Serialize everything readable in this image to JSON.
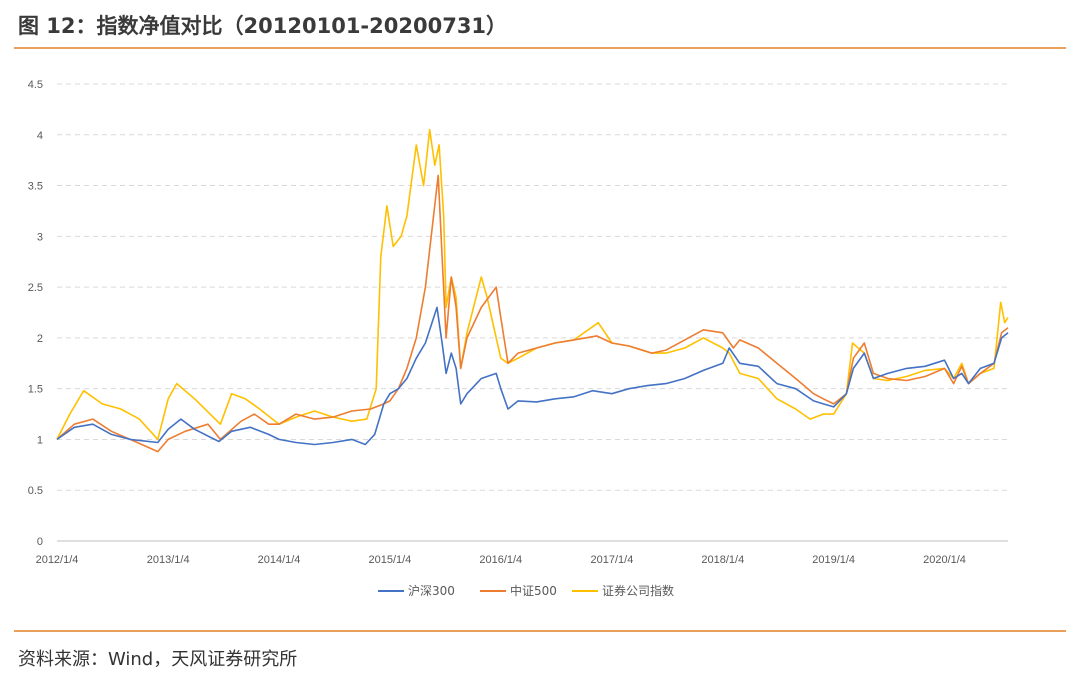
{
  "title": "图 12：指数净值对比（20120101-20200731）",
  "source": "资料来源：Wind，天风证券研究所",
  "colors": {
    "hs300": "#4472c4",
    "zz500": "#ed7d31",
    "sec": "#ffc000",
    "accent": "#e8a05a"
  },
  "chart_data": {
    "type": "line",
    "title": "",
    "xlabel": "",
    "ylabel": "",
    "ylim": [
      0,
      4.5
    ],
    "yticks": [
      "0",
      "0.5",
      "1",
      "1.5",
      "2",
      "2.5",
      "3",
      "3.5",
      "4",
      "4.5"
    ],
    "xlim": [
      "2012-01-04",
      "2020-07-31"
    ],
    "xticks": [
      "2012/1/4",
      "2013/1/4",
      "2014/1/4",
      "2015/1/4",
      "2016/1/4",
      "2017/1/4",
      "2018/1/4",
      "2019/1/4",
      "2020/1/4"
    ],
    "grid": "horizontal-dashed",
    "legend_position": "bottom",
    "series": [
      {
        "name": "沪深300",
        "x": [
          "2012-01-04",
          "2012-03-01",
          "2012-05-01",
          "2012-07-01",
          "2012-09-01",
          "2012-12-01",
          "2013-01-04",
          "2013-02-15",
          "2013-04-01",
          "2013-06-20",
          "2013-08-01",
          "2013-10-01",
          "2013-12-01",
          "2014-01-04",
          "2014-03-01",
          "2014-05-01",
          "2014-07-01",
          "2014-09-01",
          "2014-10-15",
          "2014-11-15",
          "2014-12-15",
          "2015-01-04",
          "2015-02-01",
          "2015-03-01",
          "2015-04-01",
          "2015-05-01",
          "2015-06-08",
          "2015-06-25",
          "2015-07-08",
          "2015-07-25",
          "2015-08-10",
          "2015-08-25",
          "2015-09-15",
          "2015-11-01",
          "2015-12-20",
          "2016-01-04",
          "2016-01-28",
          "2016-03-01",
          "2016-05-01",
          "2016-07-01",
          "2016-09-01",
          "2016-11-01",
          "2017-01-04",
          "2017-03-01",
          "2017-05-01",
          "2017-07-01",
          "2017-09-01",
          "2017-11-01",
          "2018-01-04",
          "2018-01-25",
          "2018-03-01",
          "2018-05-01",
          "2018-07-01",
          "2018-09-01",
          "2018-10-30",
          "2018-12-01",
          "2019-01-04",
          "2019-02-15",
          "2019-03-10",
          "2019-04-15",
          "2019-05-15",
          "2019-07-01",
          "2019-09-01",
          "2019-11-01",
          "2020-01-04",
          "2020-02-03",
          "2020-03-01",
          "2020-03-23",
          "2020-05-01",
          "2020-06-15",
          "2020-07-10",
          "2020-07-31"
        ],
        "values": [
          1.0,
          1.12,
          1.15,
          1.05,
          1.0,
          0.97,
          1.1,
          1.2,
          1.1,
          0.98,
          1.08,
          1.12,
          1.05,
          1.0,
          0.97,
          0.95,
          0.97,
          1.0,
          0.95,
          1.05,
          1.35,
          1.45,
          1.5,
          1.6,
          1.8,
          1.95,
          2.3,
          1.95,
          1.65,
          1.85,
          1.7,
          1.35,
          1.45,
          1.6,
          1.65,
          1.5,
          1.3,
          1.38,
          1.37,
          1.4,
          1.42,
          1.48,
          1.45,
          1.5,
          1.53,
          1.55,
          1.6,
          1.68,
          1.75,
          1.9,
          1.75,
          1.72,
          1.55,
          1.5,
          1.38,
          1.35,
          1.32,
          1.45,
          1.7,
          1.85,
          1.6,
          1.65,
          1.7,
          1.72,
          1.78,
          1.6,
          1.65,
          1.55,
          1.7,
          1.75,
          2.0,
          2.05
        ]
      },
      {
        "name": "中证500",
        "x": [
          "2012-01-04",
          "2012-03-01",
          "2012-05-01",
          "2012-07-01",
          "2012-09-01",
          "2012-12-01",
          "2013-01-04",
          "2013-03-01",
          "2013-05-15",
          "2013-06-25",
          "2013-09-01",
          "2013-10-15",
          "2013-12-01",
          "2014-01-04",
          "2014-03-01",
          "2014-05-01",
          "2014-07-01",
          "2014-09-01",
          "2014-11-01",
          "2014-12-15",
          "2015-01-04",
          "2015-02-01",
          "2015-03-01",
          "2015-04-01",
          "2015-05-01",
          "2015-06-12",
          "2015-06-25",
          "2015-07-08",
          "2015-07-25",
          "2015-08-10",
          "2015-08-25",
          "2015-09-15",
          "2015-11-01",
          "2015-12-20",
          "2016-01-04",
          "2016-01-28",
          "2016-03-01",
          "2016-05-01",
          "2016-07-01",
          "2016-09-01",
          "2016-11-15",
          "2017-01-04",
          "2017-03-01",
          "2017-05-15",
          "2017-07-01",
          "2017-09-01",
          "2017-11-01",
          "2018-01-04",
          "2018-02-08",
          "2018-03-01",
          "2018-05-01",
          "2018-07-01",
          "2018-09-01",
          "2018-10-30",
          "2018-12-01",
          "2019-01-04",
          "2019-02-15",
          "2019-03-10",
          "2019-04-15",
          "2019-05-15",
          "2019-07-01",
          "2019-09-01",
          "2019-11-01",
          "2020-01-04",
          "2020-02-03",
          "2020-03-01",
          "2020-03-23",
          "2020-05-01",
          "2020-06-15",
          "2020-07-10",
          "2020-07-31"
        ],
        "values": [
          1.0,
          1.15,
          1.2,
          1.08,
          1.0,
          0.88,
          1.0,
          1.08,
          1.15,
          1.0,
          1.18,
          1.25,
          1.15,
          1.15,
          1.25,
          1.2,
          1.22,
          1.28,
          1.3,
          1.35,
          1.38,
          1.5,
          1.7,
          2.0,
          2.5,
          3.6,
          2.8,
          2.0,
          2.6,
          2.3,
          1.7,
          2.0,
          2.3,
          2.5,
          2.2,
          1.75,
          1.85,
          1.9,
          1.95,
          1.98,
          2.02,
          1.95,
          1.92,
          1.85,
          1.88,
          1.98,
          2.08,
          2.05,
          1.9,
          1.98,
          1.9,
          1.75,
          1.6,
          1.45,
          1.4,
          1.35,
          1.45,
          1.8,
          1.95,
          1.65,
          1.6,
          1.58,
          1.62,
          1.7,
          1.55,
          1.72,
          1.55,
          1.65,
          1.75,
          2.05,
          2.1
        ]
      },
      {
        "name": "证券公司指数",
        "x": [
          "2012-01-04",
          "2012-02-15",
          "2012-04-01",
          "2012-06-01",
          "2012-08-01",
          "2012-10-01",
          "2012-12-01",
          "2013-01-04",
          "2013-02-01",
          "2013-04-01",
          "2013-06-25",
          "2013-08-01",
          "2013-09-15",
          "2013-11-01",
          "2014-01-04",
          "2014-03-01",
          "2014-05-01",
          "2014-07-01",
          "2014-09-01",
          "2014-10-20",
          "2014-11-20",
          "2014-12-05",
          "2014-12-25",
          "2015-01-15",
          "2015-02-10",
          "2015-03-01",
          "2015-04-01",
          "2015-04-25",
          "2015-05-15",
          "2015-06-01",
          "2015-06-15",
          "2015-06-30",
          "2015-07-08",
          "2015-07-25",
          "2015-08-10",
          "2015-08-25",
          "2015-09-15",
          "2015-11-01",
          "2015-11-20",
          "2015-12-20",
          "2016-01-04",
          "2016-01-28",
          "2016-03-01",
          "2016-05-01",
          "2016-07-01",
          "2016-09-01",
          "2016-11-20",
          "2017-01-04",
          "2017-03-01",
          "2017-05-15",
          "2017-07-01",
          "2017-09-01",
          "2017-11-01",
          "2018-01-04",
          "2018-01-25",
          "2018-03-01",
          "2018-05-01",
          "2018-07-01",
          "2018-09-01",
          "2018-10-18",
          "2018-12-01",
          "2019-01-04",
          "2019-02-15",
          "2019-03-07",
          "2019-04-15",
          "2019-05-15",
          "2019-07-01",
          "2019-09-01",
          "2019-11-01",
          "2020-01-04",
          "2020-02-03",
          "2020-03-01",
          "2020-03-23",
          "2020-05-01",
          "2020-06-15",
          "2020-07-07",
          "2020-07-20",
          "2020-07-31"
        ],
        "values": [
          1.0,
          1.25,
          1.48,
          1.35,
          1.3,
          1.2,
          1.0,
          1.4,
          1.55,
          1.4,
          1.15,
          1.45,
          1.4,
          1.3,
          1.15,
          1.22,
          1.28,
          1.22,
          1.18,
          1.2,
          1.5,
          2.8,
          3.3,
          2.9,
          3.0,
          3.2,
          3.9,
          3.5,
          4.05,
          3.7,
          3.9,
          3.2,
          2.3,
          2.6,
          2.4,
          1.7,
          2.05,
          2.6,
          2.4,
          2.0,
          1.8,
          1.75,
          1.8,
          1.9,
          1.95,
          1.98,
          2.15,
          1.95,
          1.92,
          1.85,
          1.85,
          1.9,
          2.0,
          1.9,
          1.85,
          1.65,
          1.6,
          1.4,
          1.3,
          1.2,
          1.25,
          1.25,
          1.45,
          1.95,
          1.85,
          1.6,
          1.58,
          1.62,
          1.68,
          1.7,
          1.6,
          1.75,
          1.55,
          1.65,
          1.7,
          2.35,
          2.15,
          2.2
        ]
      }
    ]
  }
}
